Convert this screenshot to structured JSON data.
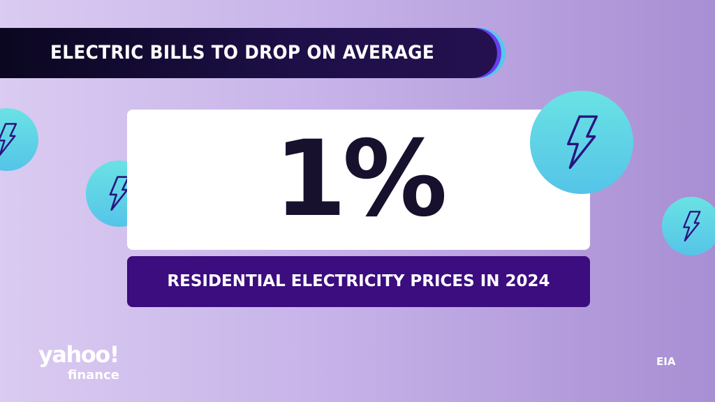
{
  "banner": {
    "title": "ELECTRIC BILLS TO DROP ON AVERAGE"
  },
  "stat": {
    "value": "1%",
    "label": "RESIDENTIAL ELECTRICITY PRICES IN 2024"
  },
  "branding": {
    "logo_main": "yahoo!",
    "logo_sub": "finance"
  },
  "source": "EIA",
  "colors": {
    "banner": "#1e0f48",
    "label_bar": "#3b0d7e",
    "circle": "#60d4e6",
    "bolt": "#2a1380",
    "stat_text": "#17112e"
  },
  "icons": [
    "lightning-bolt-icon"
  ]
}
